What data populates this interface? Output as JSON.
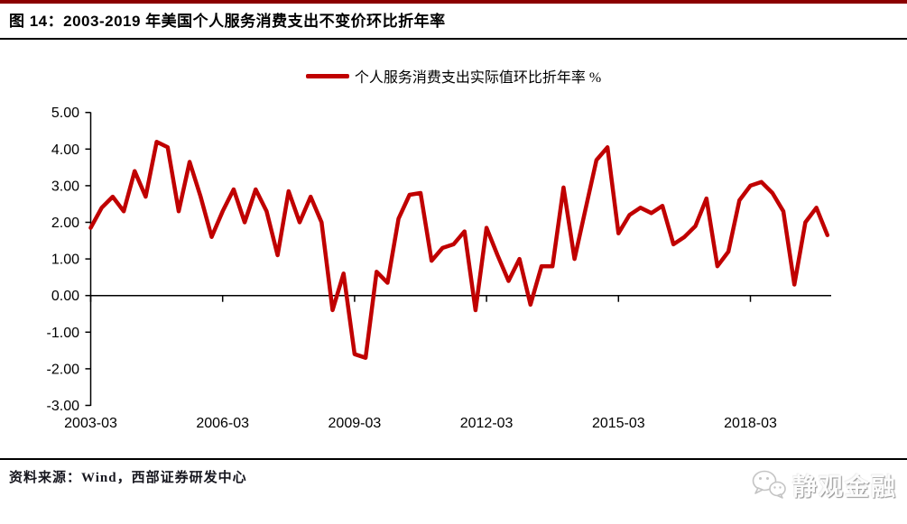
{
  "header": {
    "title": "图 14：2003-2019 年美国个人服务消费支出不变价环比折年率"
  },
  "legend": {
    "label": "个人服务消费支出实际值环比折年率 %"
  },
  "footer": {
    "source": "资料来源：Wind，西部证券研发中心",
    "logo_text": "静观金融",
    "logo_icon": "wechat-icon"
  },
  "colors": {
    "line": "#c00000",
    "top_rule": "#8b0000",
    "axis": "#000000",
    "text": "#000000"
  },
  "chart_data": {
    "type": "line",
    "title": "图 14：2003-2019 年美国个人服务消费支出不变价环比折年率",
    "legend_entries": [
      "个人服务消费支出实际值环比折年率 %"
    ],
    "legend_position": "top-center",
    "grid": "zero-line-only",
    "ylim": [
      -3,
      5
    ],
    "y_tick_step": 1,
    "y_tick_labels": [
      "5.00",
      "4.00",
      "3.00",
      "2.00",
      "1.00",
      "0.00",
      "-1.00",
      "-2.00",
      "-3.00"
    ],
    "x_tick_labels": [
      "2003-03",
      "2006-03",
      "2009-03",
      "2012-03",
      "2015-03",
      "2018-03"
    ],
    "x_tick_indices": [
      0,
      12,
      24,
      36,
      48,
      60
    ],
    "xlabel": "",
    "ylabel": "",
    "categories": [
      "2003-03",
      "2003-06",
      "2003-09",
      "2003-12",
      "2004-03",
      "2004-06",
      "2004-09",
      "2004-12",
      "2005-03",
      "2005-06",
      "2005-09",
      "2005-12",
      "2006-03",
      "2006-06",
      "2006-09",
      "2006-12",
      "2007-03",
      "2007-06",
      "2007-09",
      "2007-12",
      "2008-03",
      "2008-06",
      "2008-09",
      "2008-12",
      "2009-03",
      "2009-06",
      "2009-09",
      "2009-12",
      "2010-03",
      "2010-06",
      "2010-09",
      "2010-12",
      "2011-03",
      "2011-06",
      "2011-09",
      "2011-12",
      "2012-03",
      "2012-06",
      "2012-09",
      "2012-12",
      "2013-03",
      "2013-06",
      "2013-09",
      "2013-12",
      "2014-03",
      "2014-06",
      "2014-09",
      "2014-12",
      "2015-03",
      "2015-06",
      "2015-09",
      "2015-12",
      "2016-03",
      "2016-06",
      "2016-09",
      "2016-12",
      "2017-03",
      "2017-06",
      "2017-09",
      "2017-12",
      "2018-03",
      "2018-06",
      "2018-09",
      "2018-12",
      "2019-03",
      "2019-06",
      "2019-09",
      "2019-12"
    ],
    "series": [
      {
        "name": "个人服务消费支出实际值环比折年率 %",
        "values": [
          1.85,
          2.4,
          2.7,
          2.3,
          3.4,
          2.7,
          4.2,
          4.05,
          2.3,
          3.65,
          2.7,
          1.6,
          2.3,
          2.9,
          2.0,
          2.9,
          2.3,
          1.1,
          2.85,
          2.0,
          2.7,
          2.0,
          -0.4,
          0.6,
          -1.6,
          -1.7,
          0.65,
          0.35,
          2.1,
          2.75,
          2.8,
          0.95,
          1.3,
          1.4,
          1.75,
          -0.4,
          1.85,
          1.1,
          0.4,
          1.0,
          -0.25,
          0.8,
          0.8,
          2.95,
          1.0,
          2.35,
          3.7,
          4.05,
          1.7,
          2.2,
          2.4,
          2.25,
          2.45,
          1.4,
          1.6,
          1.9,
          2.65,
          0.8,
          1.2,
          2.6,
          3.0,
          3.1,
          2.8,
          2.3,
          0.3,
          2.0,
          2.4,
          1.65
        ]
      }
    ]
  }
}
